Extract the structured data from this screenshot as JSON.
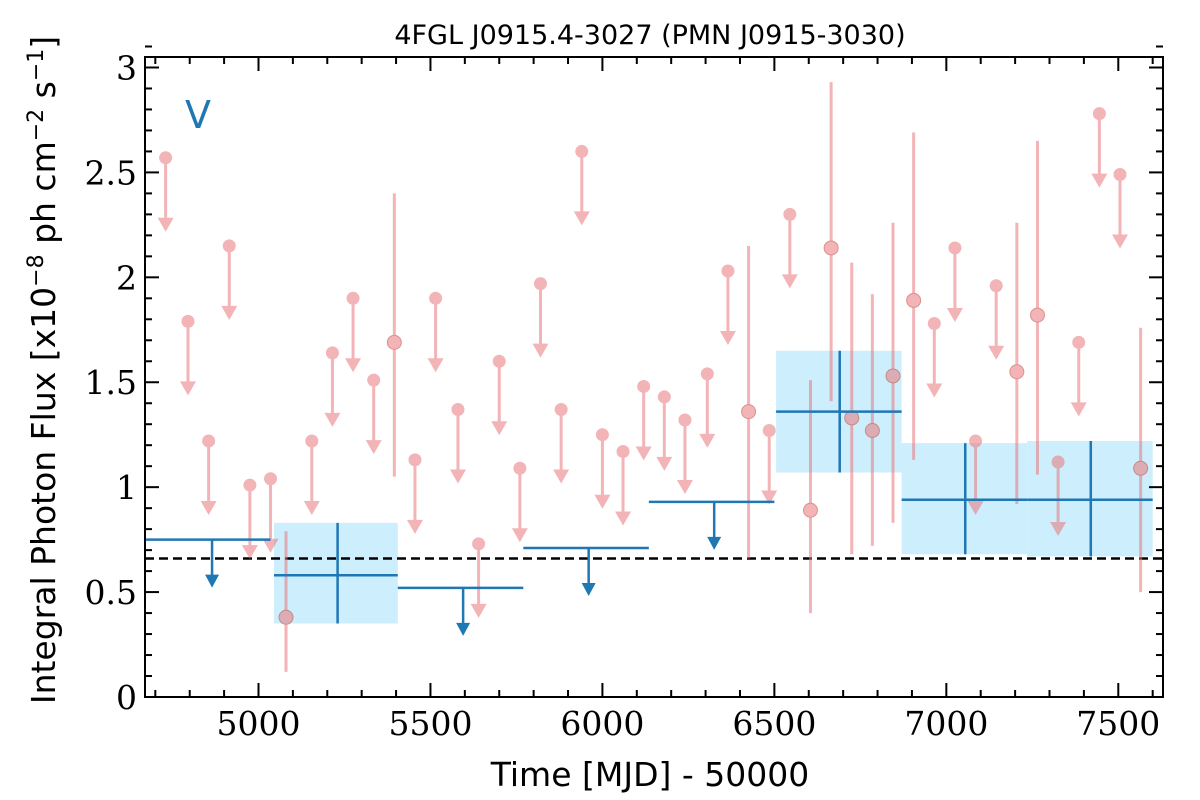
{
  "chart_data": {
    "type": "scatter",
    "title": "4FGL J0915.4-3027 (PMN J0915-3030)",
    "xlabel": "Time [MJD] - 50000",
    "ylabel": "Integral Photon Flux [x10$^{-8}$ ph cm$^{-2}$ s$^{-1}$]",
    "band_label": "V",
    "xlim": [
      4670,
      7630
    ],
    "ylim": [
      0,
      3.05
    ],
    "xticks": [
      5000,
      5500,
      6000,
      6500,
      7000,
      7500
    ],
    "xtick_labels": [
      "5000",
      "5500",
      "6000",
      "6500",
      "7000",
      "7500"
    ],
    "yticks": [
      0,
      0.5,
      1,
      1.5,
      2,
      2.5,
      3
    ],
    "ytick_labels": [
      "0",
      "0.5",
      "1",
      "1.5",
      "2",
      "2.5",
      "3"
    ],
    "reference_level": 0.66,
    "colors": {
      "short_bins": "#e8777b",
      "long_bins": "#1f77b4",
      "long_bins_fill": "#cdeefc",
      "reference_line": "#000000"
    },
    "series": [
      {
        "type": "upper_limits",
        "color": "short_bins",
        "points": [
          [
            4730,
            2.57
          ],
          [
            4795,
            1.79
          ],
          [
            4855,
            1.22
          ],
          [
            4915,
            2.15
          ],
          [
            4975,
            1.01
          ],
          [
            5035,
            1.04
          ],
          [
            5155,
            1.22
          ],
          [
            5215,
            1.64
          ],
          [
            5275,
            1.9
          ],
          [
            5335,
            1.51
          ],
          [
            5455,
            1.13
          ],
          [
            5515,
            1.9
          ],
          [
            5580,
            1.37
          ],
          [
            5640,
            0.73
          ],
          [
            5700,
            1.6
          ],
          [
            5760,
            1.09
          ],
          [
            5820,
            1.97
          ],
          [
            5880,
            1.37
          ],
          [
            5940,
            2.6
          ],
          [
            6000,
            1.25
          ],
          [
            6060,
            1.17
          ],
          [
            6120,
            1.48
          ],
          [
            6180,
            1.43
          ],
          [
            6240,
            1.32
          ],
          [
            6305,
            1.54
          ],
          [
            6365,
            2.03
          ],
          [
            6485,
            1.27
          ],
          [
            6545,
            2.3
          ],
          [
            6965,
            1.78
          ],
          [
            7025,
            2.14
          ],
          [
            7085,
            1.22
          ],
          [
            7145,
            1.96
          ],
          [
            7325,
            1.12
          ],
          [
            7385,
            1.69
          ],
          [
            7445,
            2.78
          ],
          [
            7505,
            2.49
          ]
        ]
      },
      {
        "type": "detections",
        "color": "short_bins",
        "points": [
          [
            5080,
            0.38,
            0.12,
            0.79
          ],
          [
            5395,
            1.69,
            1.05,
            2.4
          ],
          [
            6425,
            1.36,
            0.66,
            2.15
          ],
          [
            6605,
            0.89,
            0.4,
            1.51
          ],
          [
            6665,
            2.14,
            1.41,
            2.93
          ],
          [
            6725,
            1.33,
            0.68,
            2.07
          ],
          [
            6785,
            1.27,
            0.72,
            1.92
          ],
          [
            6845,
            1.53,
            0.83,
            2.26
          ],
          [
            6905,
            1.89,
            1.13,
            2.69
          ],
          [
            7205,
            1.55,
            0.92,
            2.26
          ],
          [
            7265,
            1.82,
            1.06,
            2.65
          ],
          [
            7565,
            1.09,
            0.5,
            1.76
          ]
        ]
      },
      {
        "type": "long_bin_upper_limits",
        "color": "long_bins",
        "bins": [
          {
            "x0": 4670,
            "x1": 5035,
            "value": 0.75,
            "xmark": 4865
          },
          {
            "x0": 5405,
            "x1": 5770,
            "value": 0.52,
            "xmark": 5595
          },
          {
            "x0": 5770,
            "x1": 6135,
            "value": 0.71,
            "xmark": 5960
          },
          {
            "x0": 6135,
            "x1": 6500,
            "value": 0.93,
            "xmark": 6325
          }
        ]
      },
      {
        "type": "long_bin_detections",
        "color": "long_bins",
        "bins": [
          {
            "x0": 5045,
            "x1": 5405,
            "value": 0.58,
            "lo": 0.35,
            "hi": 0.83,
            "xmark": 5230
          },
          {
            "x0": 6505,
            "x1": 6870,
            "value": 1.36,
            "lo": 1.07,
            "hi": 1.65,
            "xmark": 6690
          },
          {
            "x0": 6870,
            "x1": 7235,
            "value": 0.94,
            "lo": 0.68,
            "hi": 1.21,
            "xmark": 7055
          },
          {
            "x0": 7235,
            "x1": 7600,
            "value": 0.94,
            "lo": 0.67,
            "hi": 1.22,
            "xmark": 7420
          }
        ]
      }
    ]
  }
}
